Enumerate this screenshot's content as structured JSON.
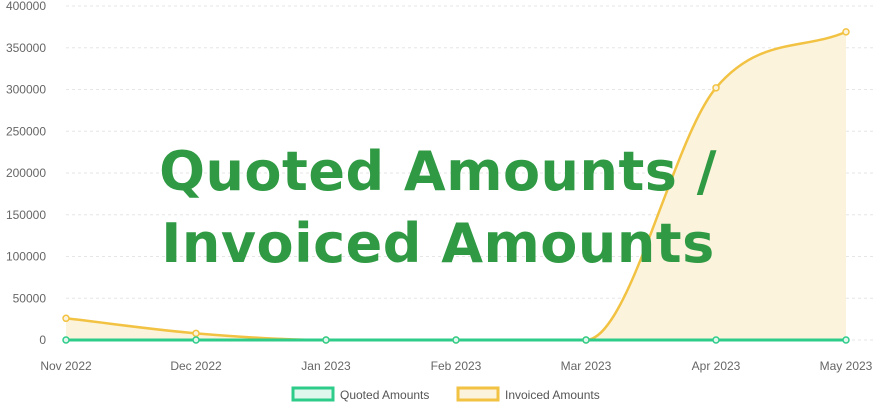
{
  "colors": {
    "quoted": "#2ecc8a",
    "quoted_fill": "#dff7ec",
    "invoiced": "#f2c243",
    "invoiced_fill": "#fcf3dc",
    "grid": "#e6e6e6",
    "axis_text": "#666666",
    "overlay_title": "#2f9a43"
  },
  "overlay": {
    "line1": "Quoted Amounts /",
    "line2": "Invoiced Amounts"
  },
  "chart_data": {
    "type": "area",
    "title": "",
    "xlabel": "",
    "ylabel": "",
    "categories": [
      "Nov 2022",
      "Dec 2022",
      "Jan 2023",
      "Feb 2023",
      "Mar 2023",
      "Apr 2023",
      "May 2023"
    ],
    "yticks": [
      0,
      50000,
      100000,
      150000,
      200000,
      250000,
      300000,
      350000,
      400000
    ],
    "ylim": [
      0,
      400000
    ],
    "grid": true,
    "legend_position": "bottom",
    "series": [
      {
        "name": "Quoted Amounts",
        "values": [
          0,
          0,
          0,
          0,
          0,
          0,
          0
        ]
      },
      {
        "name": "Invoiced Amounts",
        "values": [
          26000,
          8000,
          0,
          0,
          0,
          302000,
          369000
        ]
      }
    ]
  }
}
